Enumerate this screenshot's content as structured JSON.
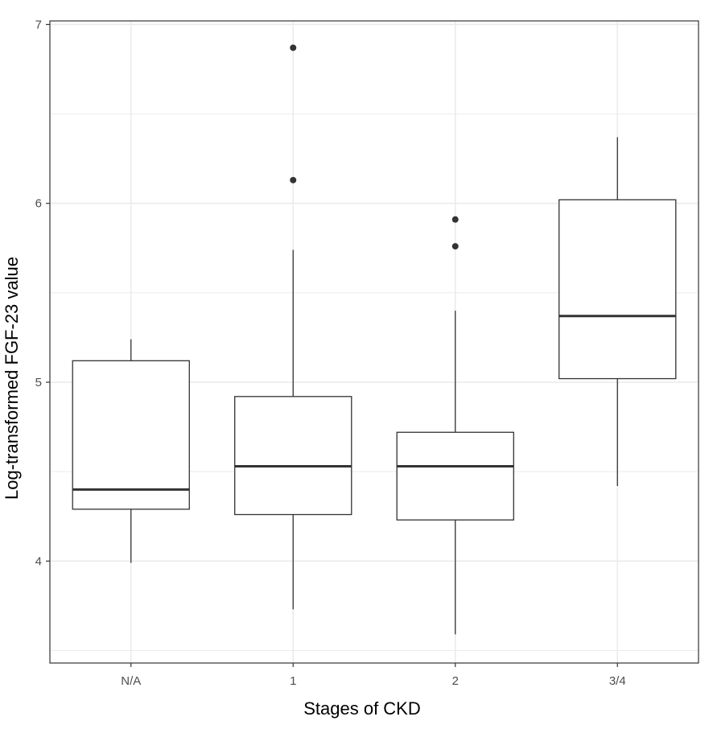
{
  "chart_data": {
    "type": "boxplot",
    "title": "",
    "xlabel": "Stages of CKD",
    "ylabel": "Log-transformed FGF-23 value",
    "ylim": [
      3.43,
      7.02
    ],
    "yticks": [
      4,
      5,
      6,
      7
    ],
    "ytick_labels": [
      "4",
      "5",
      "6",
      "7"
    ],
    "y_minor_gridlines": [
      3.5,
      4.5,
      5.5,
      6.5
    ],
    "grid": true,
    "legend": "none",
    "categories": [
      "N/A",
      "1",
      "2",
      "3/4"
    ],
    "boxes": [
      {
        "category": "N/A",
        "whisker_low": 3.99,
        "q1": 4.29,
        "median": 4.4,
        "q3": 5.12,
        "whisker_high": 5.24,
        "outliers": []
      },
      {
        "category": "1",
        "whisker_low": 3.73,
        "q1": 4.26,
        "median": 4.53,
        "q3": 4.92,
        "whisker_high": 5.74,
        "outliers": [
          6.13,
          6.87
        ]
      },
      {
        "category": "2",
        "whisker_low": 3.59,
        "q1": 4.23,
        "median": 4.53,
        "q3": 4.72,
        "whisker_high": 5.4,
        "outliers": [
          5.76,
          5.91
        ]
      },
      {
        "category": "3/4",
        "whisker_low": 4.42,
        "q1": 5.02,
        "median": 5.37,
        "q3": 6.02,
        "whisker_high": 6.37,
        "outliers": []
      }
    ],
    "colors": {
      "box_fill": "#ffffff",
      "box_stroke": "#333333",
      "outlier": "#333333",
      "grid": "#ebebeb",
      "panel_border": "#333333"
    }
  }
}
